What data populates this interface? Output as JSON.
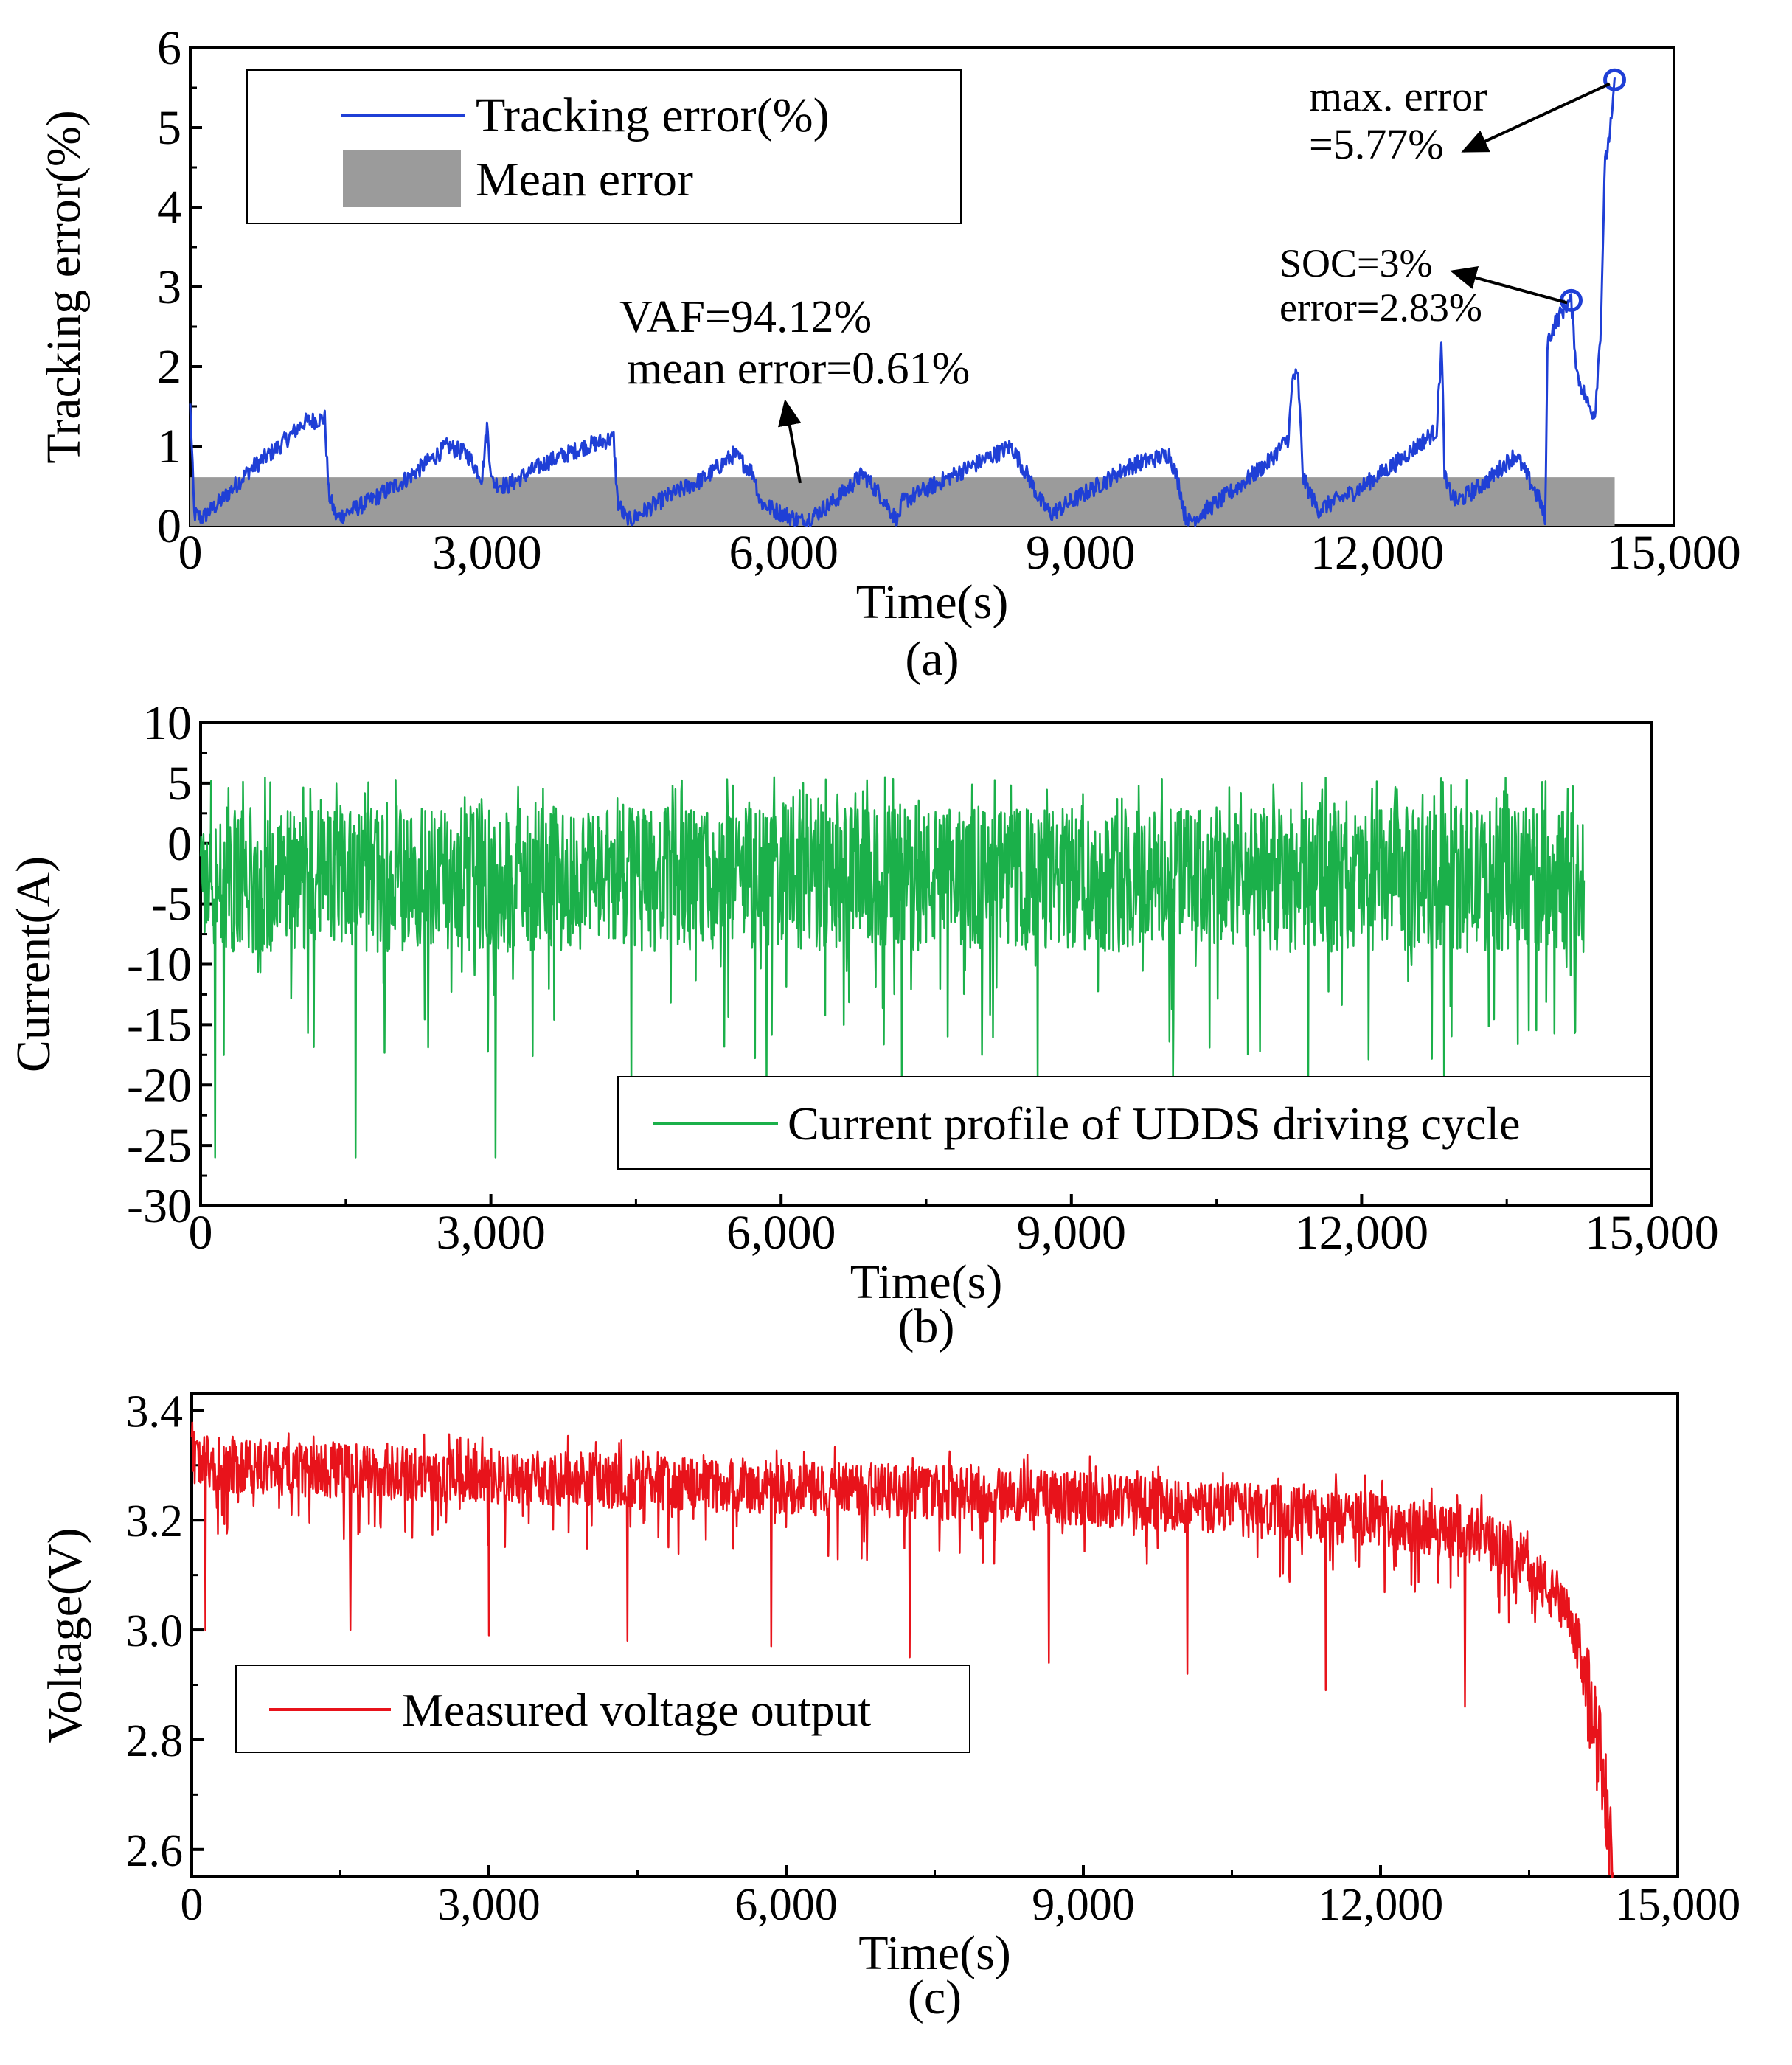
{
  "chart_data": [
    {
      "type": "line",
      "caption": "(a)",
      "xlabel": "Time(s)",
      "ylabel": "Tracking error(%)",
      "xlim": [
        0,
        15000
      ],
      "ylim": [
        0,
        6
      ],
      "x_ticks": [
        0,
        3000,
        6000,
        9000,
        12000,
        15000
      ],
      "x_tick_labels": [
        "0",
        "3,000",
        "6,000",
        "9,000",
        "12,000",
        "15,000"
      ],
      "y_ticks": [
        0,
        1,
        2,
        3,
        4,
        5,
        6
      ],
      "y_tick_labels": [
        "0",
        "1",
        "2",
        "3",
        "4",
        "5",
        "6"
      ],
      "legend_placement": "top-left",
      "series": [
        {
          "name": "Tracking error(%)",
          "color": "#1f3fd6",
          "x": [
            0,
            40,
            120,
            300,
            600,
            900,
            1150,
            1360,
            1400,
            1480,
            1800,
            2200,
            2600,
            2800,
            2950,
            3000,
            3050,
            3200,
            3600,
            4000,
            4280,
            4320,
            4420,
            4800,
            5200,
            5500,
            5700,
            5760,
            5900,
            6200,
            6500,
            6800,
            7000,
            7150,
            7200,
            7500,
            7900,
            8300,
            8500,
            8600,
            8700,
            9100,
            9500,
            9900,
            10000,
            10050,
            10100,
            10500,
            10900,
            11100,
            11150,
            11200,
            11250,
            11400,
            11800,
            12200,
            12600,
            12650,
            12680,
            12700,
            12800,
            13100,
            13400,
            13650,
            13700,
            13720,
            13800,
            13900,
            13960,
            14020,
            14080,
            14140,
            14200,
            14260,
            14300,
            14380,
            14400
          ],
          "values": [
            1.5,
            0.15,
            0.1,
            0.3,
            0.7,
            1.0,
            1.3,
            1.35,
            0.4,
            0.1,
            0.3,
            0.6,
            1.0,
            0.9,
            0.6,
            1.25,
            0.55,
            0.5,
            0.8,
            1.0,
            1.1,
            0.3,
            0.05,
            0.35,
            0.6,
            0.9,
            0.65,
            0.3,
            0.2,
            0.05,
            0.3,
            0.65,
            0.35,
            0.05,
            0.3,
            0.5,
            0.75,
            1.0,
            0.55,
            0.3,
            0.15,
            0.45,
            0.75,
            0.9,
            0.5,
            0.15,
            0.05,
            0.4,
            0.8,
            1.1,
            1.9,
            1.85,
            0.6,
            0.2,
            0.45,
            0.8,
            1.2,
            2.3,
            0.7,
            0.5,
            0.3,
            0.55,
            0.9,
            0.3,
            0.05,
            2.3,
            2.55,
            2.75,
            2.83,
            1.9,
            1.7,
            1.5,
            1.4,
            2.5,
            4.5,
            5.2,
            5.6
          ]
        },
        {
          "name": "Mean error",
          "type": "area",
          "color": "#9b9b9b",
          "x": [
            0,
            14400
          ],
          "values": [
            0.61,
            0.61
          ]
        }
      ],
      "markers": [
        {
          "x": 13960,
          "y": 2.83,
          "color": "#1f3fd6"
        },
        {
          "x": 14400,
          "y": 5.6,
          "color": "#1f3fd6"
        }
      ],
      "annotations": [
        {
          "lines": [
            "max. error",
            "=5.77%"
          ]
        },
        {
          "lines": [
            "SOC=3%",
            "error=2.83%"
          ]
        },
        {
          "lines": [
            "VAF=94.12%",
            "mean error=0.61%"
          ]
        }
      ]
    },
    {
      "type": "line",
      "caption": "(b)",
      "xlabel": "Time(s)",
      "ylabel": "Current(A)",
      "xlim": [
        0,
        15000
      ],
      "ylim": [
        -30,
        10
      ],
      "x_ticks": [
        0,
        3000,
        6000,
        9000,
        12000,
        15000
      ],
      "x_tick_labels": [
        "0",
        "3,000",
        "6,000",
        "9,000",
        "12,000",
        "15,000"
      ],
      "y_ticks": [
        -30,
        -25,
        -20,
        -15,
        -10,
        -5,
        0,
        5,
        10
      ],
      "y_tick_labels": [
        "-30",
        "-25",
        "-20",
        "-15",
        "-10",
        "-5",
        "0",
        "5",
        "10"
      ],
      "legend_placement": "bottom-right",
      "series": [
        {
          "name": "Current profile of UDDS driving cycle",
          "color": "#1bb04a",
          "x": [
            0,
            150,
            300,
            1550,
            1600,
            3000,
            3050,
            4400,
            4450,
            5800,
            5850,
            7200,
            7250,
            8600,
            8650,
            10000,
            10050,
            11400,
            11450,
            12800,
            12850,
            14200,
            14300
          ],
          "values": [
            0,
            -26,
            5,
            5,
            -26,
            5,
            -26,
            5,
            -20,
            5,
            -20,
            5,
            -20,
            5,
            -20,
            5,
            -20,
            5,
            -20,
            5,
            -20,
            5,
            -13
          ],
          "peaks_high": 5.5,
          "peaks_low": -26
        }
      ]
    },
    {
      "type": "line",
      "caption": "(c)",
      "xlabel": "Time(s)",
      "ylabel": "Voltage(V)",
      "xlim": [
        0,
        15000
      ],
      "ylim": [
        2.55,
        3.43
      ],
      "x_ticks": [
        0,
        3000,
        6000,
        9000,
        12000,
        15000
      ],
      "x_tick_labels": [
        "0",
        "3,000",
        "6,000",
        "9,000",
        "12,000",
        "15,000"
      ],
      "y_ticks": [
        2.6,
        2.8,
        3.0,
        3.2,
        3.4
      ],
      "y_tick_labels": [
        "2.6",
        "2.8",
        "3.0",
        "3.2",
        "3.4"
      ],
      "legend_placement": "middle-left",
      "series": [
        {
          "name": "Measured voltage output",
          "color": "#e8131b",
          "x": [
            0,
            200,
            1500,
            3000,
            4500,
            6000,
            7500,
            9000,
            10500,
            12000,
            13000,
            13500,
            13900,
            14100,
            14200,
            14300,
            14350
          ],
          "values": [
            3.32,
            3.3,
            3.29,
            3.28,
            3.27,
            3.26,
            3.25,
            3.24,
            3.22,
            3.2,
            3.17,
            3.12,
            3.02,
            2.92,
            2.78,
            2.66,
            2.62
          ]
        }
      ]
    }
  ]
}
